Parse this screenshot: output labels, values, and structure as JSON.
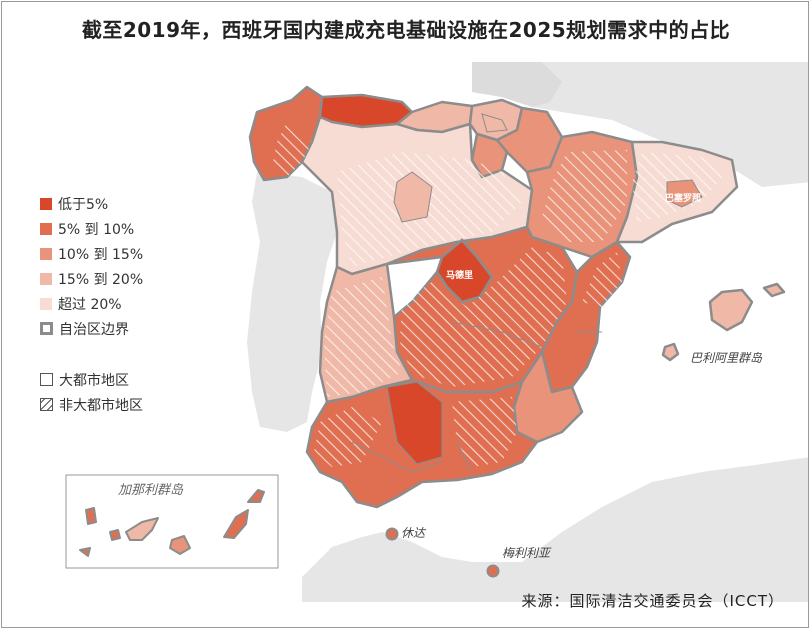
{
  "title": "截至2019年，西班牙国内建成充电基础设施在2025规划需求中的占比",
  "legend": {
    "items": [
      {
        "label": "低于5%",
        "color": "#d9472b"
      },
      {
        "label": "5% 到 10%",
        "color": "#e06f52"
      },
      {
        "label": "10% 到 15%",
        "color": "#e8937a"
      },
      {
        "label": "15% 到 20%",
        "color": "#f0b8a6"
      },
      {
        "label": "超过 20%",
        "color": "#f7dcd3"
      }
    ],
    "border_label": "自治区边界",
    "metro_label": "大都市地区",
    "nonmetro_label": "非大都市地区"
  },
  "labels": {
    "madrid": "马德里",
    "barcelona": "巴塞罗那",
    "balearic": "巴利阿里群岛",
    "canary": "加那利群岛",
    "ceuta": "休达",
    "melilla": "梅利利亚"
  },
  "source": "来源：国际清洁交通委员会（ICCT）"
}
